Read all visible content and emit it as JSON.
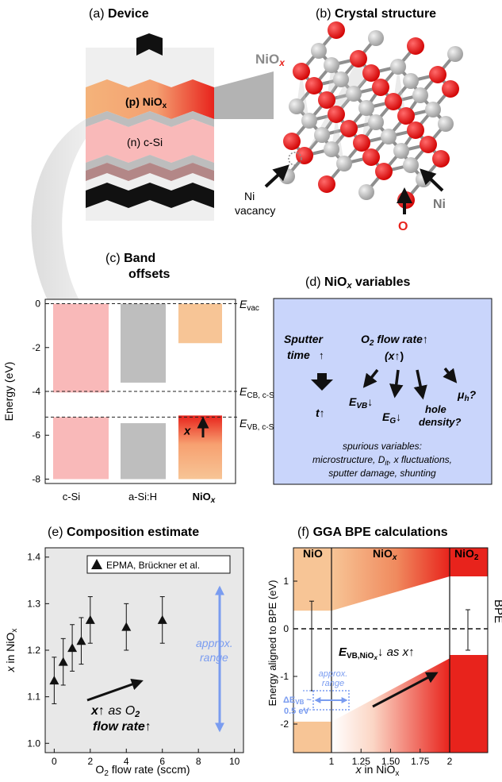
{
  "panel_a": {
    "label": "(a)",
    "title": "Device",
    "layer_p": "(p) NiO",
    "layer_p_sub": "x",
    "layer_n": "(n) c-Si"
  },
  "panel_b": {
    "label": "(b)",
    "title": "Crystal structure",
    "formula_ni": "NiO",
    "formula_x": "x",
    "ni_vacancy_1": "Ni",
    "ni_vacancy_2": "vacancy",
    "atom_ni": "Ni",
    "atom_o": "O"
  },
  "panel_c": {
    "label": "(c)",
    "title_line1": "Band",
    "title_line2": "offsets",
    "ylabel": "Energy (eV)",
    "yticks": [
      "0",
      "-2",
      "-4",
      "-6",
      "-8"
    ],
    "categories": [
      "c-Si",
      "a-Si:H",
      "NiO"
    ],
    "cat_sub": "x",
    "evac": "E",
    "evac_sub": "vac",
    "ecb": "E",
    "ecb_sub": "CB, c-Si",
    "evb": "E",
    "evb_sub": "VB, c-Si",
    "x_label": "x",
    "colors": {
      "csi": "#f9b9b9",
      "asi": "#bebebe",
      "nio": "#f7c596",
      "nio_red": "#e8231c"
    }
  },
  "panel_d": {
    "label": "(d)",
    "title": "NiO",
    "title_sub": "x",
    "title_rest": " variables",
    "sputter_1": "Sputter",
    "sputter_2": "time",
    "o2_1": "O",
    "o2_sub": "2",
    "o2_2": " flow rate",
    "o2_x": "(x",
    "t_label": "t",
    "evb": "E",
    "evb_sub": "VB",
    "eg": "E",
    "eg_sub": "G",
    "mu": "μ",
    "mu_sub": "h",
    "mu_q": "?",
    "hole_1": "hole",
    "hole_2": "density?",
    "spur_1": "spurious variables:",
    "spur_2": "microstructure, D",
    "spur_2_sub": "it",
    "spur_2_rest": ", x fluctuations,",
    "spur_3": "sputter damage, shunting",
    "bg_color": "#c9d5fb"
  },
  "panel_e": {
    "label": "(e)",
    "title": "Composition estimate",
    "legend": "EPMA, Brückner et al.",
    "ylabel_pre": "x",
    "ylabel_rest": " in NiO",
    "ylabel_sub": "x",
    "xlabel_pre": "O",
    "xlabel_sub": "2",
    "xlabel_rest": " flow rate (sccm)",
    "xticks": [
      "0",
      "2",
      "4",
      "6",
      "8",
      "10"
    ],
    "yticks": [
      "1.0",
      "1.1",
      "1.2",
      "1.3",
      "1.4"
    ],
    "annot_1": "x",
    "annot_1b": " as O",
    "annot_1_sub": "2",
    "annot_2": "flow rate",
    "range_1": "approx.",
    "range_2": "range"
  },
  "chart_data": {
    "type": "scatter",
    "x": [
      0,
      0.5,
      1.0,
      1.5,
      2.0,
      4.0,
      6.0
    ],
    "y": [
      1.135,
      1.175,
      1.205,
      1.22,
      1.265,
      1.25,
      1.265
    ],
    "yerr": [
      0.05,
      0.05,
      0.05,
      0.05,
      0.05,
      0.05,
      0.05
    ],
    "xlim": [
      -0.5,
      10.5
    ],
    "ylim": [
      0.98,
      1.42
    ],
    "xlabel": "O2 flow rate (sccm)",
    "ylabel": "x in NiOx",
    "legend": "EPMA, Brückner et al.",
    "marker": "triangle"
  },
  "panel_f": {
    "label": "(f)",
    "title": "GGA BPE calculations",
    "region_nio": "NiO",
    "region_niox": "NiO",
    "region_niox_sub": "x",
    "region_nio2": "NiO",
    "region_nio2_sub": "2",
    "ylabel": "Energy aligned to BPE (eV)",
    "bpe": "BPE",
    "yticks": [
      "1",
      "0",
      "-1",
      "-2"
    ],
    "xticks": [
      "1",
      "1.25",
      "1.50",
      "1.75",
      "2"
    ],
    "xlabel_pre": "x",
    "xlabel_rest": " in NiO",
    "xlabel_sub": "x",
    "evb_annot": "E",
    "evb_annot_sub": "VB,NiO",
    "evb_annot_sub2": "x",
    "evb_annot_rest": " as x",
    "range_1": "approx.",
    "range_2": "range",
    "delta_1": "ΔE",
    "delta_1_sub": "VB",
    "delta_1_rest": " ~",
    "delta_2": "0.5 eV"
  }
}
